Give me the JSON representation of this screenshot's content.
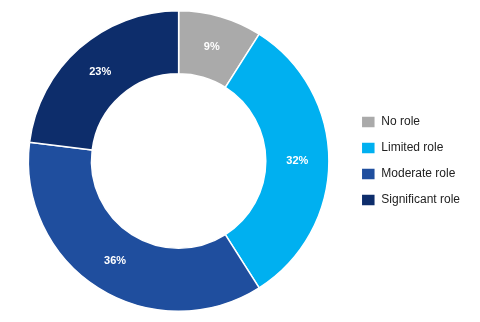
{
  "chart_data": {
    "type": "donut",
    "categories": [
      "No role",
      "Limited role",
      "Moderate role",
      "Significant role"
    ],
    "values": [
      9,
      32,
      36,
      23
    ],
    "value_labels": [
      "9%",
      "32%",
      "36%",
      "23%"
    ],
    "colors": [
      "#aaaaaa",
      "#00b0f0",
      "#1f4e9e",
      "#0d2d6b"
    ],
    "data_labels": true,
    "legend": "right"
  }
}
